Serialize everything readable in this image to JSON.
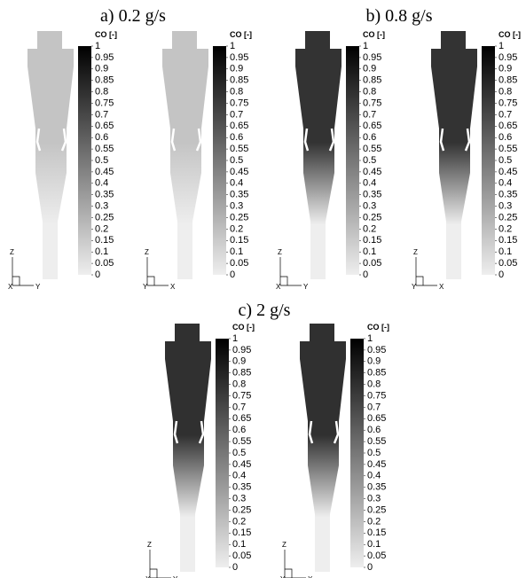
{
  "panel_titles": [
    "a) 0.2 g/s",
    "b) 0.8 g/s",
    "c) 2 g/s"
  ],
  "plots": [
    {
      "colorbar_title": "CO [-]",
      "colorbar_ticks": [
        1,
        0.95,
        0.9,
        0.85,
        0.8,
        0.75,
        0.7,
        0.65,
        0.6,
        0.55,
        0.5,
        0.45,
        0.4,
        0.35,
        0.3,
        0.25,
        0.2,
        0.15,
        0.1,
        0.05,
        0
      ],
      "axes": [
        "Z",
        "X",
        "Y"
      ],
      "colors": [
        "#c4c4c4",
        "#eeeeee"
      ]
    },
    {
      "colorbar_title": "CO [-]",
      "colorbar_ticks": [
        1,
        0.95,
        0.9,
        0.85,
        0.8,
        0.75,
        0.7,
        0.65,
        0.6,
        0.55,
        0.5,
        0.45,
        0.4,
        0.35,
        0.3,
        0.25,
        0.2,
        0.15,
        0.1,
        0.05,
        0
      ],
      "axes": [
        "Z",
        "Y",
        "X"
      ],
      "colors": [
        "#c4c4c4",
        "#eeeeee"
      ]
    },
    {
      "colorbar_title": "CO [-]",
      "colorbar_ticks": [
        1,
        0.95,
        0.9,
        0.85,
        0.8,
        0.75,
        0.7,
        0.65,
        0.6,
        0.55,
        0.5,
        0.45,
        0.4,
        0.35,
        0.3,
        0.25,
        0.2,
        0.15,
        0.1,
        0.05,
        0
      ],
      "axes": [
        "Z",
        "X",
        "Y"
      ],
      "colors": [
        "#333333",
        "#eeeeee"
      ]
    },
    {
      "colorbar_title": "CO [-]",
      "colorbar_ticks": [
        1,
        0.95,
        0.9,
        0.85,
        0.8,
        0.75,
        0.7,
        0.65,
        0.6,
        0.55,
        0.5,
        0.45,
        0.4,
        0.35,
        0.3,
        0.25,
        0.2,
        0.15,
        0.1,
        0.05,
        0
      ],
      "axes": [
        "Z",
        "Y",
        "X"
      ],
      "colors": [
        "#333333",
        "#eeeeee"
      ]
    },
    {
      "colorbar_title": "CO [-]",
      "colorbar_ticks": [
        1,
        0.95,
        0.9,
        0.85,
        0.8,
        0.75,
        0.7,
        0.65,
        0.6,
        0.55,
        0.5,
        0.45,
        0.4,
        0.35,
        0.3,
        0.25,
        0.2,
        0.15,
        0.1,
        0.05,
        0
      ],
      "axes": [
        "Z",
        "X",
        "Y"
      ],
      "colors": [
        "#303030",
        "#eeeeee"
      ]
    },
    {
      "colorbar_title": "CO [-]",
      "colorbar_ticks": [
        1,
        0.95,
        0.9,
        0.85,
        0.8,
        0.75,
        0.7,
        0.65,
        0.6,
        0.55,
        0.5,
        0.45,
        0.4,
        0.35,
        0.3,
        0.25,
        0.2,
        0.15,
        0.1,
        0.05,
        0
      ],
      "axes": [
        "Z",
        "Y",
        "X"
      ],
      "colors": [
        "#303030",
        "#eeeeee"
      ]
    }
  ]
}
